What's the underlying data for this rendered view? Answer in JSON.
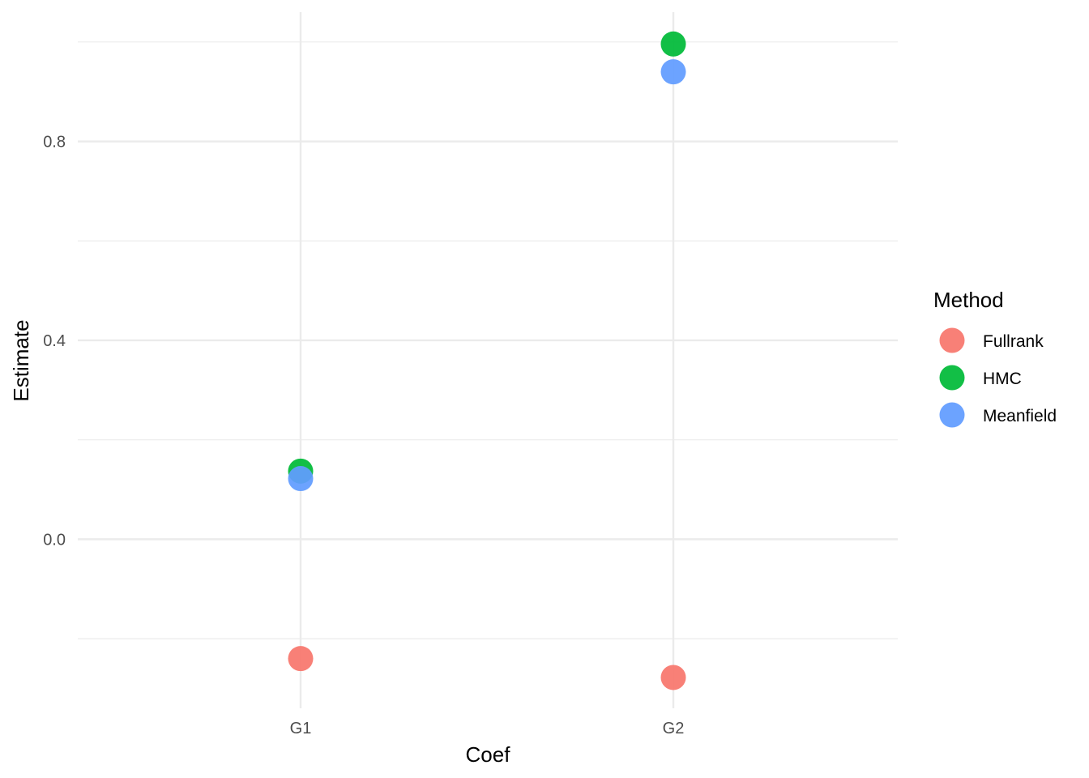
{
  "chart_data": {
    "type": "scatter",
    "title": "",
    "xlabel": "Coef",
    "ylabel": "Estimate",
    "categories": [
      "G1",
      "G2"
    ],
    "ylim": [
      -0.34,
      1.06
    ],
    "y_ticks": [
      0.0,
      0.4,
      0.8
    ],
    "y_tick_labels": [
      "0.0",
      "0.4",
      "0.8"
    ],
    "y_minor_ticks": [
      -0.2,
      0.2,
      0.6,
      1.0
    ],
    "grid": true,
    "legend": {
      "title": "Method",
      "position": "right"
    },
    "series": [
      {
        "name": "Fullrank",
        "color": "#F8766D",
        "values": [
          -0.24,
          -0.278
        ]
      },
      {
        "name": "HMC",
        "color": "#00BA38",
        "values": [
          0.137,
          0.996
        ]
      },
      {
        "name": "Meanfield",
        "color": "#619CFF",
        "values": [
          0.122,
          0.94
        ]
      }
    ]
  }
}
